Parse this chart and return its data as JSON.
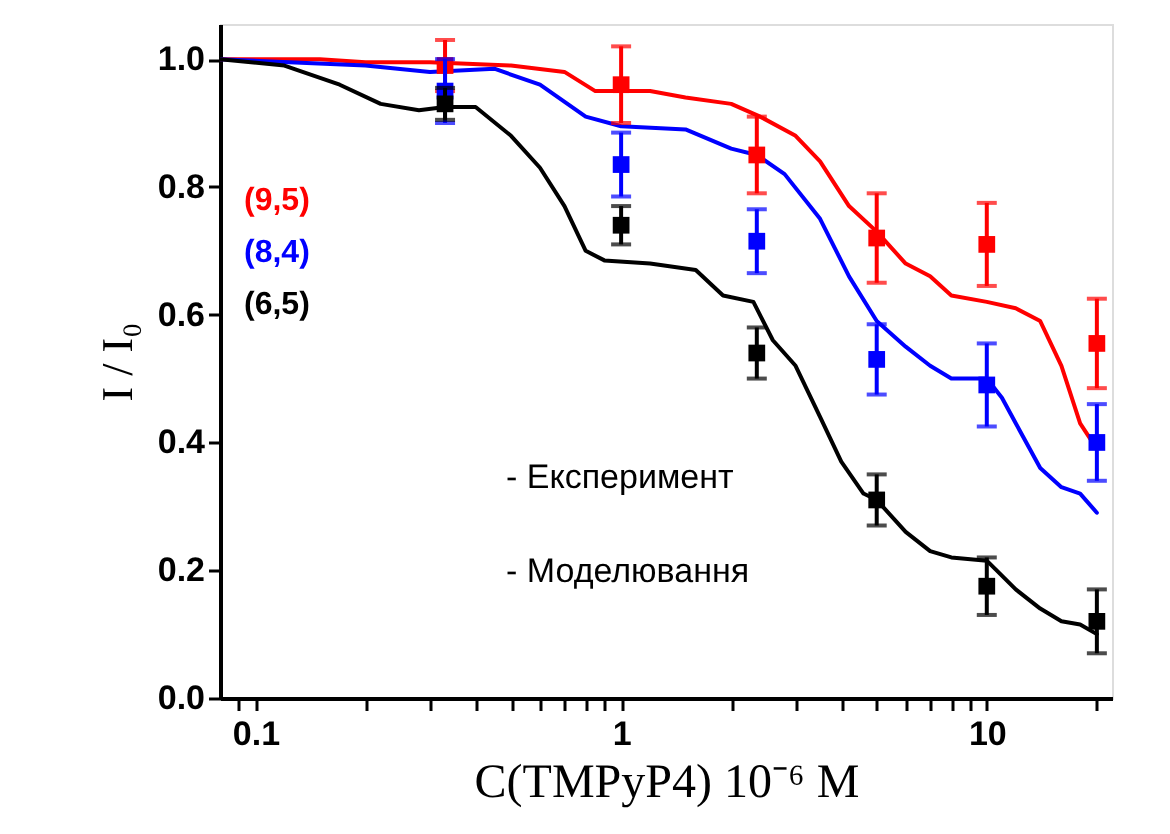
{
  "chart_data": {
    "type": "line",
    "xlabel": "C(TMPyP4) 10⁻⁶ M",
    "ylabel": "I / I₀",
    "log": "x",
    "grid": false,
    "xlim": [
      0.08,
      22
    ],
    "ylim": [
      0,
      1.055
    ],
    "xticks": [
      {
        "value": 0.09,
        "label": null
      },
      {
        "value": 0.1,
        "label": "0.1"
      },
      {
        "value": 0.2,
        "label": null
      },
      {
        "value": 0.3,
        "label": null
      },
      {
        "value": 0.4,
        "label": null
      },
      {
        "value": 0.5,
        "label": null
      },
      {
        "value": 0.6,
        "label": null
      },
      {
        "value": 0.7,
        "label": null
      },
      {
        "value": 0.8,
        "label": null
      },
      {
        "value": 0.9,
        "label": null
      },
      1,
      {
        "value": 2,
        "label": null
      },
      {
        "value": 3,
        "label": null
      },
      {
        "value": 4,
        "label": null
      },
      {
        "value": 5,
        "label": null
      },
      {
        "value": 6,
        "label": null
      },
      {
        "value": 7,
        "label": null
      },
      {
        "value": 8,
        "label": null
      },
      {
        "value": 9,
        "label": null
      },
      10,
      {
        "value": 20,
        "label": null
      }
    ],
    "yticks": [
      {
        "value": 0,
        "label": "0.0"
      },
      0.2,
      0.4,
      0.6,
      0.8,
      {
        "value": 1,
        "label": "1.0"
      }
    ],
    "series": [
      {
        "name": "(9,5)",
        "color": "#ff0000",
        "line_style": "solid",
        "x": [
          0.08,
          0.15,
          0.2,
          0.3,
          0.5,
          0.7,
          0.85,
          1.2,
          1.5,
          2,
          2.4,
          3,
          3.5,
          4.2,
          5,
          6,
          7,
          8,
          10,
          12,
          14,
          16,
          18,
          20
        ],
        "values": [
          1.0,
          1.0,
          0.995,
          0.995,
          0.99,
          0.98,
          0.95,
          0.95,
          0.94,
          0.93,
          0.91,
          0.88,
          0.84,
          0.77,
          0.73,
          0.68,
          0.66,
          0.63,
          0.62,
          0.61,
          0.59,
          0.52,
          0.43,
          0.39
        ]
      },
      {
        "name": "(8,4)",
        "color": "#0000ff",
        "line_style": "solid",
        "x": [
          0.08,
          0.2,
          0.3,
          0.45,
          0.6,
          0.8,
          1,
          1.5,
          2,
          2.35,
          2.8,
          3.5,
          4.2,
          5,
          6,
          7,
          8,
          10,
          11,
          12,
          14,
          16,
          18,
          20
        ],
        "values": [
          1.0,
          0.99,
          0.98,
          0.985,
          0.96,
          0.91,
          0.895,
          0.89,
          0.86,
          0.85,
          0.82,
          0.75,
          0.66,
          0.59,
          0.55,
          0.52,
          0.5,
          0.5,
          0.47,
          0.43,
          0.36,
          0.33,
          0.32,
          0.29
        ]
      },
      {
        "name": "(6,5)",
        "color": "#000000",
        "line_style": "solid",
        "x": [
          0.08,
          0.12,
          0.17,
          0.22,
          0.28,
          0.33,
          0.4,
          0.5,
          0.6,
          0.7,
          0.8,
          0.9,
          1.2,
          1.6,
          1.9,
          2.3,
          2.6,
          3,
          3.5,
          4,
          4.6,
          5,
          6,
          7,
          8,
          10,
          12,
          14,
          16,
          18,
          20
        ],
        "values": [
          1.0,
          0.99,
          0.96,
          0.93,
          0.92,
          0.925,
          0.925,
          0.88,
          0.83,
          0.77,
          0.7,
          0.685,
          0.68,
          0.67,
          0.63,
          0.62,
          0.56,
          0.52,
          0.44,
          0.37,
          0.32,
          0.31,
          0.26,
          0.23,
          0.22,
          0.215,
          0.17,
          0.14,
          0.12,
          0.115,
          0.1
        ]
      },
      {
        "type": "scatter",
        "color": "#ff0000",
        "marker": "square",
        "x": [
          0.33,
          1,
          2.35,
          5,
          10,
          20
        ],
        "values": [
          0.99,
          0.96,
          0.85,
          0.72,
          0.71,
          0.555
        ],
        "errors": [
          0.04,
          0.06,
          0.06,
          0.07,
          0.065,
          0.07
        ]
      },
      {
        "type": "scatter",
        "color": "#0000ff",
        "marker": "square",
        "x": [
          0.33,
          1,
          2.35,
          5,
          10,
          20
        ],
        "values": [
          0.95,
          0.835,
          0.715,
          0.53,
          0.49,
          0.4
        ],
        "errors": [
          0.05,
          0.05,
          0.05,
          0.055,
          0.065,
          0.06
        ]
      },
      {
        "type": "scatter",
        "color": "#000000",
        "marker": "square",
        "x": [
          0.33,
          1,
          2.35,
          5,
          10,
          20
        ],
        "values": [
          0.93,
          0.74,
          0.54,
          0.31,
          0.175,
          0.12
        ],
        "errors": [
          0.025,
          0.03,
          0.04,
          0.04,
          0.045,
          0.05
        ]
      }
    ],
    "annotations": [
      "- Експеримент",
      "- Моделювання"
    ]
  }
}
